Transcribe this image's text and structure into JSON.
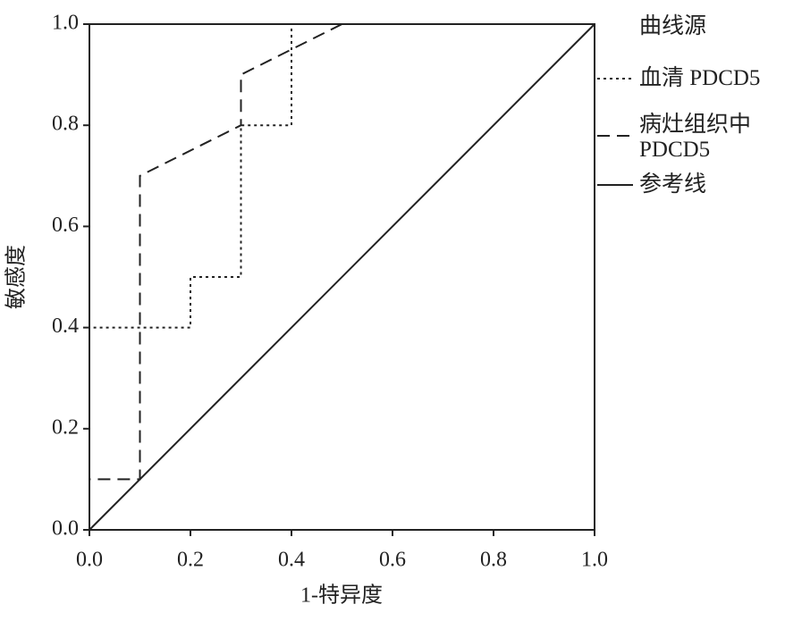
{
  "chart_data": {
    "type": "line",
    "xlabel": "1-特异度",
    "ylabel": "敏感度",
    "legend_title": "曲线源",
    "xlim": [
      0,
      1
    ],
    "ylim": [
      0,
      1
    ],
    "xticks": [
      {
        "value": 0,
        "label": "0.0"
      },
      {
        "value": 0.2,
        "label": "0.2"
      },
      {
        "value": 0.4,
        "label": "0.4"
      },
      {
        "value": 0.6,
        "label": "0.6"
      },
      {
        "value": 0.8,
        "label": "0.8"
      },
      {
        "value": 1,
        "label": "1.0"
      }
    ],
    "yticks": [
      {
        "value": 0,
        "label": "0.0"
      },
      {
        "value": 0.2,
        "label": "0.2"
      },
      {
        "value": 0.4,
        "label": "0.4"
      },
      {
        "value": 0.6,
        "label": "0.6"
      },
      {
        "value": 0.8,
        "label": "0.8"
      },
      {
        "value": 1,
        "label": "1.0"
      }
    ],
    "legend": "right",
    "series": [
      {
        "name": "血清 PDCD5",
        "color": "#222222",
        "dash": "3 4",
        "x": [
          0,
          0,
          0.2,
          0.2,
          0.3,
          0.3,
          0.4,
          0.4,
          1
        ],
        "values": [
          0,
          0.4,
          0.4,
          0.5,
          0.5,
          0.8,
          0.8,
          1,
          1
        ]
      },
      {
        "name": "病灶组织中 PDCD5",
        "color": "#222222",
        "dash": "14 8",
        "x": [
          0,
          0,
          0.1,
          0.1,
          0.3,
          0.3,
          0.5,
          1
        ],
        "values": [
          0,
          0.1,
          0.1,
          0.7,
          0.8,
          0.9,
          1,
          1
        ]
      },
      {
        "name": "参考线",
        "color": "#222222",
        "dash": "none",
        "x": [
          0,
          1
        ],
        "values": [
          0,
          1
        ]
      }
    ]
  }
}
